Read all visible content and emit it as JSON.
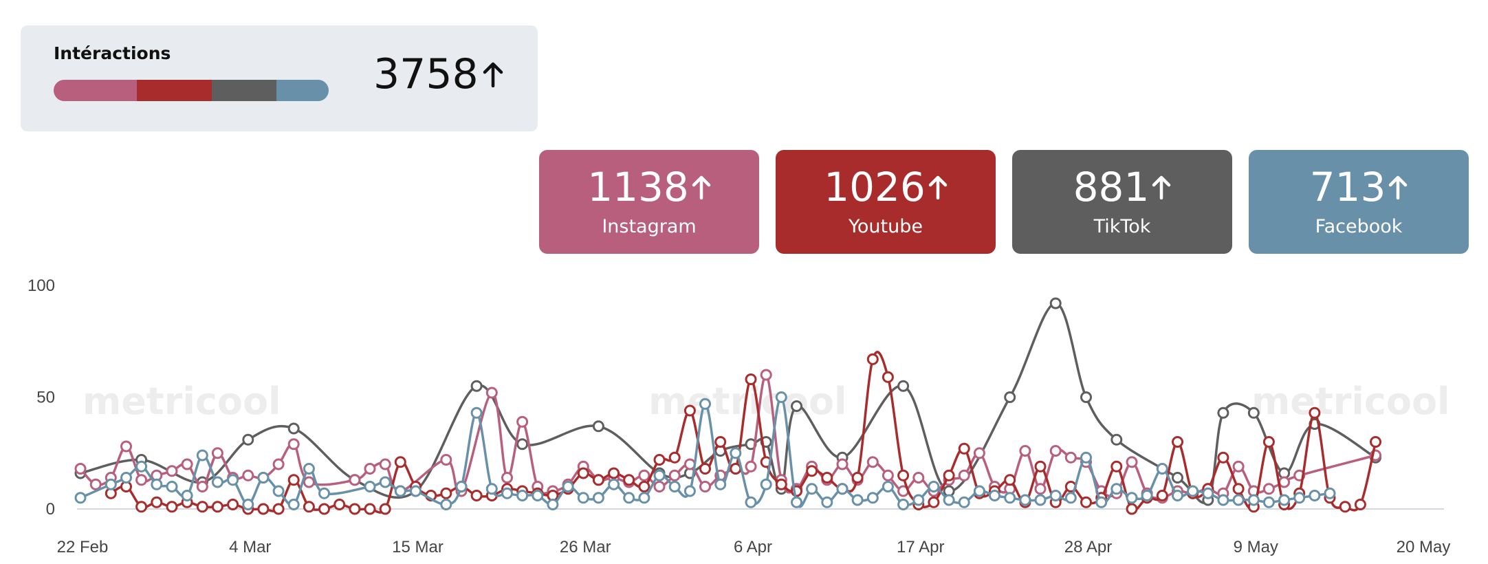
{
  "summary": {
    "title": "Intéractions",
    "total": "3758",
    "bar_fractions": [
      0.303,
      0.273,
      0.234,
      0.19
    ]
  },
  "networks": [
    {
      "key": "instagram",
      "label": "Instagram",
      "value": "1138",
      "color": "#b85f7e"
    },
    {
      "key": "youtube",
      "label": "Youtube",
      "value": "1026",
      "color": "#a82c2c"
    },
    {
      "key": "tiktok",
      "label": "TikTok",
      "value": "881",
      "color": "#5e5e5e"
    },
    {
      "key": "facebook",
      "label": "Facebook",
      "value": "713",
      "color": "#6890a8"
    }
  ],
  "watermark": "metricool",
  "chart_data": {
    "type": "line",
    "x_start": "2024-02-22",
    "x_ticks": [
      "22 Feb",
      "4 Mar",
      "15 Mar",
      "26 Mar",
      "6 Apr",
      "17 Apr",
      "28 Apr",
      "9 May",
      "20 May"
    ],
    "y_ticks": [
      0,
      50,
      100
    ],
    "ylim": [
      0,
      100
    ],
    "grid": false,
    "series": [
      {
        "name": "TikTok",
        "color": "#5e5e5e",
        "points": [
          [
            "2024-02-22",
            16
          ],
          [
            "2024-02-26",
            22
          ],
          [
            "2024-03-01",
            12
          ],
          [
            "2024-03-04",
            31
          ],
          [
            "2024-03-07",
            36
          ],
          [
            "2024-03-11",
            13
          ],
          [
            "2024-03-15",
            8
          ],
          [
            "2024-03-19",
            55
          ],
          [
            "2024-03-22",
            29
          ],
          [
            "2024-03-27",
            37
          ],
          [
            "2024-03-31",
            16
          ],
          [
            "2024-04-02",
            16
          ],
          [
            "2024-04-04",
            26
          ],
          [
            "2024-04-06",
            29
          ],
          [
            "2024-04-07",
            30
          ],
          [
            "2024-04-08",
            9
          ],
          [
            "2024-04-09",
            46
          ],
          [
            "2024-04-12",
            23
          ],
          [
            "2024-04-16",
            55
          ],
          [
            "2024-04-19",
            8
          ],
          [
            "2024-04-23",
            50
          ],
          [
            "2024-04-26",
            92
          ],
          [
            "2024-04-28",
            50
          ],
          [
            "2024-04-30",
            31
          ],
          [
            "2024-05-04",
            14
          ],
          [
            "2024-05-06",
            4
          ],
          [
            "2024-05-07",
            43
          ],
          [
            "2024-05-09",
            43
          ],
          [
            "2024-05-11",
            16
          ],
          [
            "2024-05-13",
            38
          ],
          [
            "2024-05-17",
            23
          ]
        ]
      },
      {
        "name": "Instagram",
        "color": "#b85f7e",
        "points": [
          [
            "2024-02-22",
            18
          ],
          [
            "2024-02-23",
            11
          ],
          [
            "2024-02-24",
            14
          ],
          [
            "2024-02-25",
            28
          ],
          [
            "2024-02-26",
            13
          ],
          [
            "2024-02-27",
            15
          ],
          [
            "2024-02-28",
            17
          ],
          [
            "2024-02-29",
            20
          ],
          [
            "2024-03-01",
            10
          ],
          [
            "2024-03-02",
            25
          ],
          [
            "2024-03-03",
            14
          ],
          [
            "2024-03-04",
            15
          ],
          [
            "2024-03-05",
            14
          ],
          [
            "2024-03-06",
            20
          ],
          [
            "2024-03-07",
            29
          ],
          [
            "2024-03-08",
            12
          ],
          [
            "2024-03-11",
            13
          ],
          [
            "2024-03-12",
            18
          ],
          [
            "2024-03-13",
            20
          ],
          [
            "2024-03-14",
            8
          ],
          [
            "2024-03-17",
            22
          ],
          [
            "2024-03-18",
            8
          ],
          [
            "2024-03-20",
            52
          ],
          [
            "2024-03-21",
            14
          ],
          [
            "2024-03-22",
            39
          ],
          [
            "2024-03-23",
            10
          ],
          [
            "2024-03-24",
            8
          ],
          [
            "2024-03-25",
            11
          ],
          [
            "2024-03-26",
            19
          ],
          [
            "2024-03-27",
            13
          ],
          [
            "2024-03-28",
            14
          ],
          [
            "2024-03-29",
            12
          ],
          [
            "2024-03-30",
            15
          ],
          [
            "2024-03-31",
            10
          ],
          [
            "2024-04-01",
            15
          ],
          [
            "2024-04-02",
            20
          ],
          [
            "2024-04-03",
            10
          ],
          [
            "2024-04-04",
            15
          ],
          [
            "2024-04-05",
            18
          ],
          [
            "2024-04-06",
            19
          ],
          [
            "2024-04-07",
            60
          ],
          [
            "2024-04-08",
            13
          ],
          [
            "2024-04-09",
            9
          ],
          [
            "2024-04-10",
            19
          ],
          [
            "2024-04-11",
            13
          ],
          [
            "2024-04-12",
            20
          ],
          [
            "2024-04-13",
            13
          ],
          [
            "2024-04-14",
            21
          ],
          [
            "2024-04-15",
            15
          ],
          [
            "2024-04-16",
            8
          ],
          [
            "2024-04-17",
            14
          ],
          [
            "2024-04-18",
            8
          ],
          [
            "2024-04-19",
            13
          ],
          [
            "2024-04-20",
            15
          ],
          [
            "2024-04-21",
            25
          ],
          [
            "2024-04-22",
            10
          ],
          [
            "2024-04-23",
            9
          ],
          [
            "2024-04-24",
            26
          ],
          [
            "2024-04-25",
            9
          ],
          [
            "2024-04-26",
            26
          ],
          [
            "2024-04-27",
            23
          ],
          [
            "2024-04-28",
            21
          ],
          [
            "2024-04-29",
            8
          ],
          [
            "2024-04-30",
            7
          ],
          [
            "2024-05-01",
            21
          ],
          [
            "2024-05-02",
            7
          ],
          [
            "2024-05-03",
            5
          ],
          [
            "2024-05-04",
            8
          ],
          [
            "2024-05-05",
            7
          ],
          [
            "2024-05-06",
            9
          ],
          [
            "2024-05-07",
            7
          ],
          [
            "2024-05-08",
            19
          ],
          [
            "2024-05-09",
            8
          ],
          [
            "2024-05-10",
            9
          ],
          [
            "2024-05-11",
            12
          ],
          [
            "2024-05-12",
            15
          ],
          [
            "2024-05-17",
            24
          ]
        ]
      },
      {
        "name": "Youtube",
        "color": "#a82c2c",
        "points": [
          [
            "2024-02-24",
            7
          ],
          [
            "2024-02-25",
            10
          ],
          [
            "2024-02-26",
            1
          ],
          [
            "2024-02-27",
            3
          ],
          [
            "2024-02-28",
            1
          ],
          [
            "2024-02-29",
            3
          ],
          [
            "2024-03-01",
            1
          ],
          [
            "2024-03-02",
            1
          ],
          [
            "2024-03-03",
            2
          ],
          [
            "2024-03-04",
            0
          ],
          [
            "2024-03-05",
            0
          ],
          [
            "2024-03-06",
            0
          ],
          [
            "2024-03-07",
            13
          ],
          [
            "2024-03-08",
            1
          ],
          [
            "2024-03-09",
            0
          ],
          [
            "2024-03-10",
            2
          ],
          [
            "2024-03-11",
            0
          ],
          [
            "2024-03-12",
            0
          ],
          [
            "2024-03-13",
            0
          ],
          [
            "2024-03-14",
            21
          ],
          [
            "2024-03-15",
            10
          ],
          [
            "2024-03-16",
            6
          ],
          [
            "2024-03-17",
            7
          ],
          [
            "2024-03-18",
            10
          ],
          [
            "2024-03-19",
            6
          ],
          [
            "2024-03-20",
            6
          ],
          [
            "2024-03-21",
            9
          ],
          [
            "2024-03-22",
            8
          ],
          [
            "2024-03-23",
            7
          ],
          [
            "2024-03-24",
            6
          ],
          [
            "2024-03-25",
            9
          ],
          [
            "2024-03-26",
            16
          ],
          [
            "2024-03-27",
            13
          ],
          [
            "2024-03-28",
            16
          ],
          [
            "2024-03-29",
            13
          ],
          [
            "2024-03-30",
            10
          ],
          [
            "2024-03-31",
            22
          ],
          [
            "2024-04-01",
            23
          ],
          [
            "2024-04-02",
            44
          ],
          [
            "2024-04-03",
            18
          ],
          [
            "2024-04-04",
            30
          ],
          [
            "2024-04-05",
            18
          ],
          [
            "2024-04-06",
            58
          ],
          [
            "2024-04-07",
            21
          ],
          [
            "2024-04-08",
            11
          ],
          [
            "2024-04-09",
            8
          ],
          [
            "2024-04-10",
            17
          ],
          [
            "2024-04-11",
            14
          ],
          [
            "2024-04-12",
            9
          ],
          [
            "2024-04-13",
            14
          ],
          [
            "2024-04-14",
            67
          ],
          [
            "2024-04-15",
            59
          ],
          [
            "2024-04-16",
            15
          ],
          [
            "2024-04-17",
            2
          ],
          [
            "2024-04-18",
            3
          ],
          [
            "2024-04-19",
            15
          ],
          [
            "2024-04-20",
            27
          ],
          [
            "2024-04-21",
            7
          ],
          [
            "2024-04-22",
            8
          ],
          [
            "2024-04-23",
            13
          ],
          [
            "2024-04-24",
            3
          ],
          [
            "2024-04-25",
            19
          ],
          [
            "2024-04-26",
            3
          ],
          [
            "2024-04-27",
            10
          ],
          [
            "2024-04-28",
            3
          ],
          [
            "2024-04-29",
            5
          ],
          [
            "2024-04-30",
            19
          ],
          [
            "2024-05-01",
            0
          ],
          [
            "2024-05-02",
            5
          ],
          [
            "2024-05-03",
            6
          ],
          [
            "2024-05-04",
            30
          ],
          [
            "2024-05-05",
            7
          ],
          [
            "2024-05-06",
            9
          ],
          [
            "2024-05-07",
            23
          ],
          [
            "2024-05-08",
            9
          ],
          [
            "2024-05-09",
            1
          ],
          [
            "2024-05-10",
            30
          ],
          [
            "2024-05-11",
            2
          ],
          [
            "2024-05-12",
            7
          ],
          [
            "2024-05-13",
            43
          ],
          [
            "2024-05-14",
            5
          ],
          [
            "2024-05-15",
            1
          ],
          [
            "2024-05-16",
            2
          ],
          [
            "2024-05-17",
            30
          ]
        ]
      },
      {
        "name": "Facebook",
        "color": "#6890a8",
        "points": [
          [
            "2024-02-22",
            5
          ],
          [
            "2024-02-24",
            11
          ],
          [
            "2024-02-25",
            14
          ],
          [
            "2024-02-26",
            19
          ],
          [
            "2024-02-27",
            11
          ],
          [
            "2024-02-28",
            10
          ],
          [
            "2024-02-29",
            6
          ],
          [
            "2024-03-01",
            24
          ],
          [
            "2024-03-02",
            12
          ],
          [
            "2024-03-03",
            13
          ],
          [
            "2024-03-04",
            2
          ],
          [
            "2024-03-05",
            14
          ],
          [
            "2024-03-06",
            8
          ],
          [
            "2024-03-07",
            2
          ],
          [
            "2024-03-08",
            18
          ],
          [
            "2024-03-09",
            7
          ],
          [
            "2024-03-12",
            10
          ],
          [
            "2024-03-13",
            12
          ],
          [
            "2024-03-14",
            8
          ],
          [
            "2024-03-15",
            8
          ],
          [
            "2024-03-17",
            2
          ],
          [
            "2024-03-18",
            10
          ],
          [
            "2024-03-19",
            43
          ],
          [
            "2024-03-20",
            9
          ],
          [
            "2024-03-21",
            7
          ],
          [
            "2024-03-22",
            6
          ],
          [
            "2024-03-23",
            6
          ],
          [
            "2024-03-24",
            2
          ],
          [
            "2024-03-25",
            10
          ],
          [
            "2024-03-26",
            5
          ],
          [
            "2024-03-27",
            5
          ],
          [
            "2024-03-28",
            11
          ],
          [
            "2024-03-29",
            5
          ],
          [
            "2024-03-30",
            5
          ],
          [
            "2024-03-31",
            15
          ],
          [
            "2024-04-01",
            10
          ],
          [
            "2024-04-02",
            8
          ],
          [
            "2024-04-03",
            47
          ],
          [
            "2024-04-04",
            11
          ],
          [
            "2024-04-05",
            25
          ],
          [
            "2024-04-06",
            3
          ],
          [
            "2024-04-07",
            11
          ],
          [
            "2024-04-08",
            50
          ],
          [
            "2024-04-09",
            3
          ],
          [
            "2024-04-10",
            9
          ],
          [
            "2024-04-11",
            3
          ],
          [
            "2024-04-12",
            9
          ],
          [
            "2024-04-13",
            4
          ],
          [
            "2024-04-14",
            5
          ],
          [
            "2024-04-15",
            10
          ],
          [
            "2024-04-16",
            2
          ],
          [
            "2024-04-17",
            4
          ],
          [
            "2024-04-18",
            10
          ],
          [
            "2024-04-19",
            4
          ],
          [
            "2024-04-20",
            3
          ],
          [
            "2024-04-21",
            8
          ],
          [
            "2024-04-22",
            6
          ],
          [
            "2024-04-23",
            5
          ],
          [
            "2024-04-24",
            4
          ],
          [
            "2024-04-25",
            4
          ],
          [
            "2024-04-26",
            6
          ],
          [
            "2024-04-27",
            5
          ],
          [
            "2024-04-28",
            23
          ],
          [
            "2024-04-29",
            3
          ],
          [
            "2024-04-30",
            9
          ],
          [
            "2024-05-01",
            5
          ],
          [
            "2024-05-02",
            6
          ],
          [
            "2024-05-03",
            18
          ],
          [
            "2024-05-04",
            6
          ],
          [
            "2024-05-05",
            8
          ],
          [
            "2024-05-06",
            7
          ],
          [
            "2024-05-07",
            4
          ],
          [
            "2024-05-08",
            4
          ],
          [
            "2024-05-09",
            4
          ],
          [
            "2024-05-10",
            3
          ],
          [
            "2024-05-11",
            4
          ],
          [
            "2024-05-12",
            5
          ],
          [
            "2024-05-13",
            6
          ],
          [
            "2024-05-14",
            7
          ]
        ]
      }
    ]
  }
}
